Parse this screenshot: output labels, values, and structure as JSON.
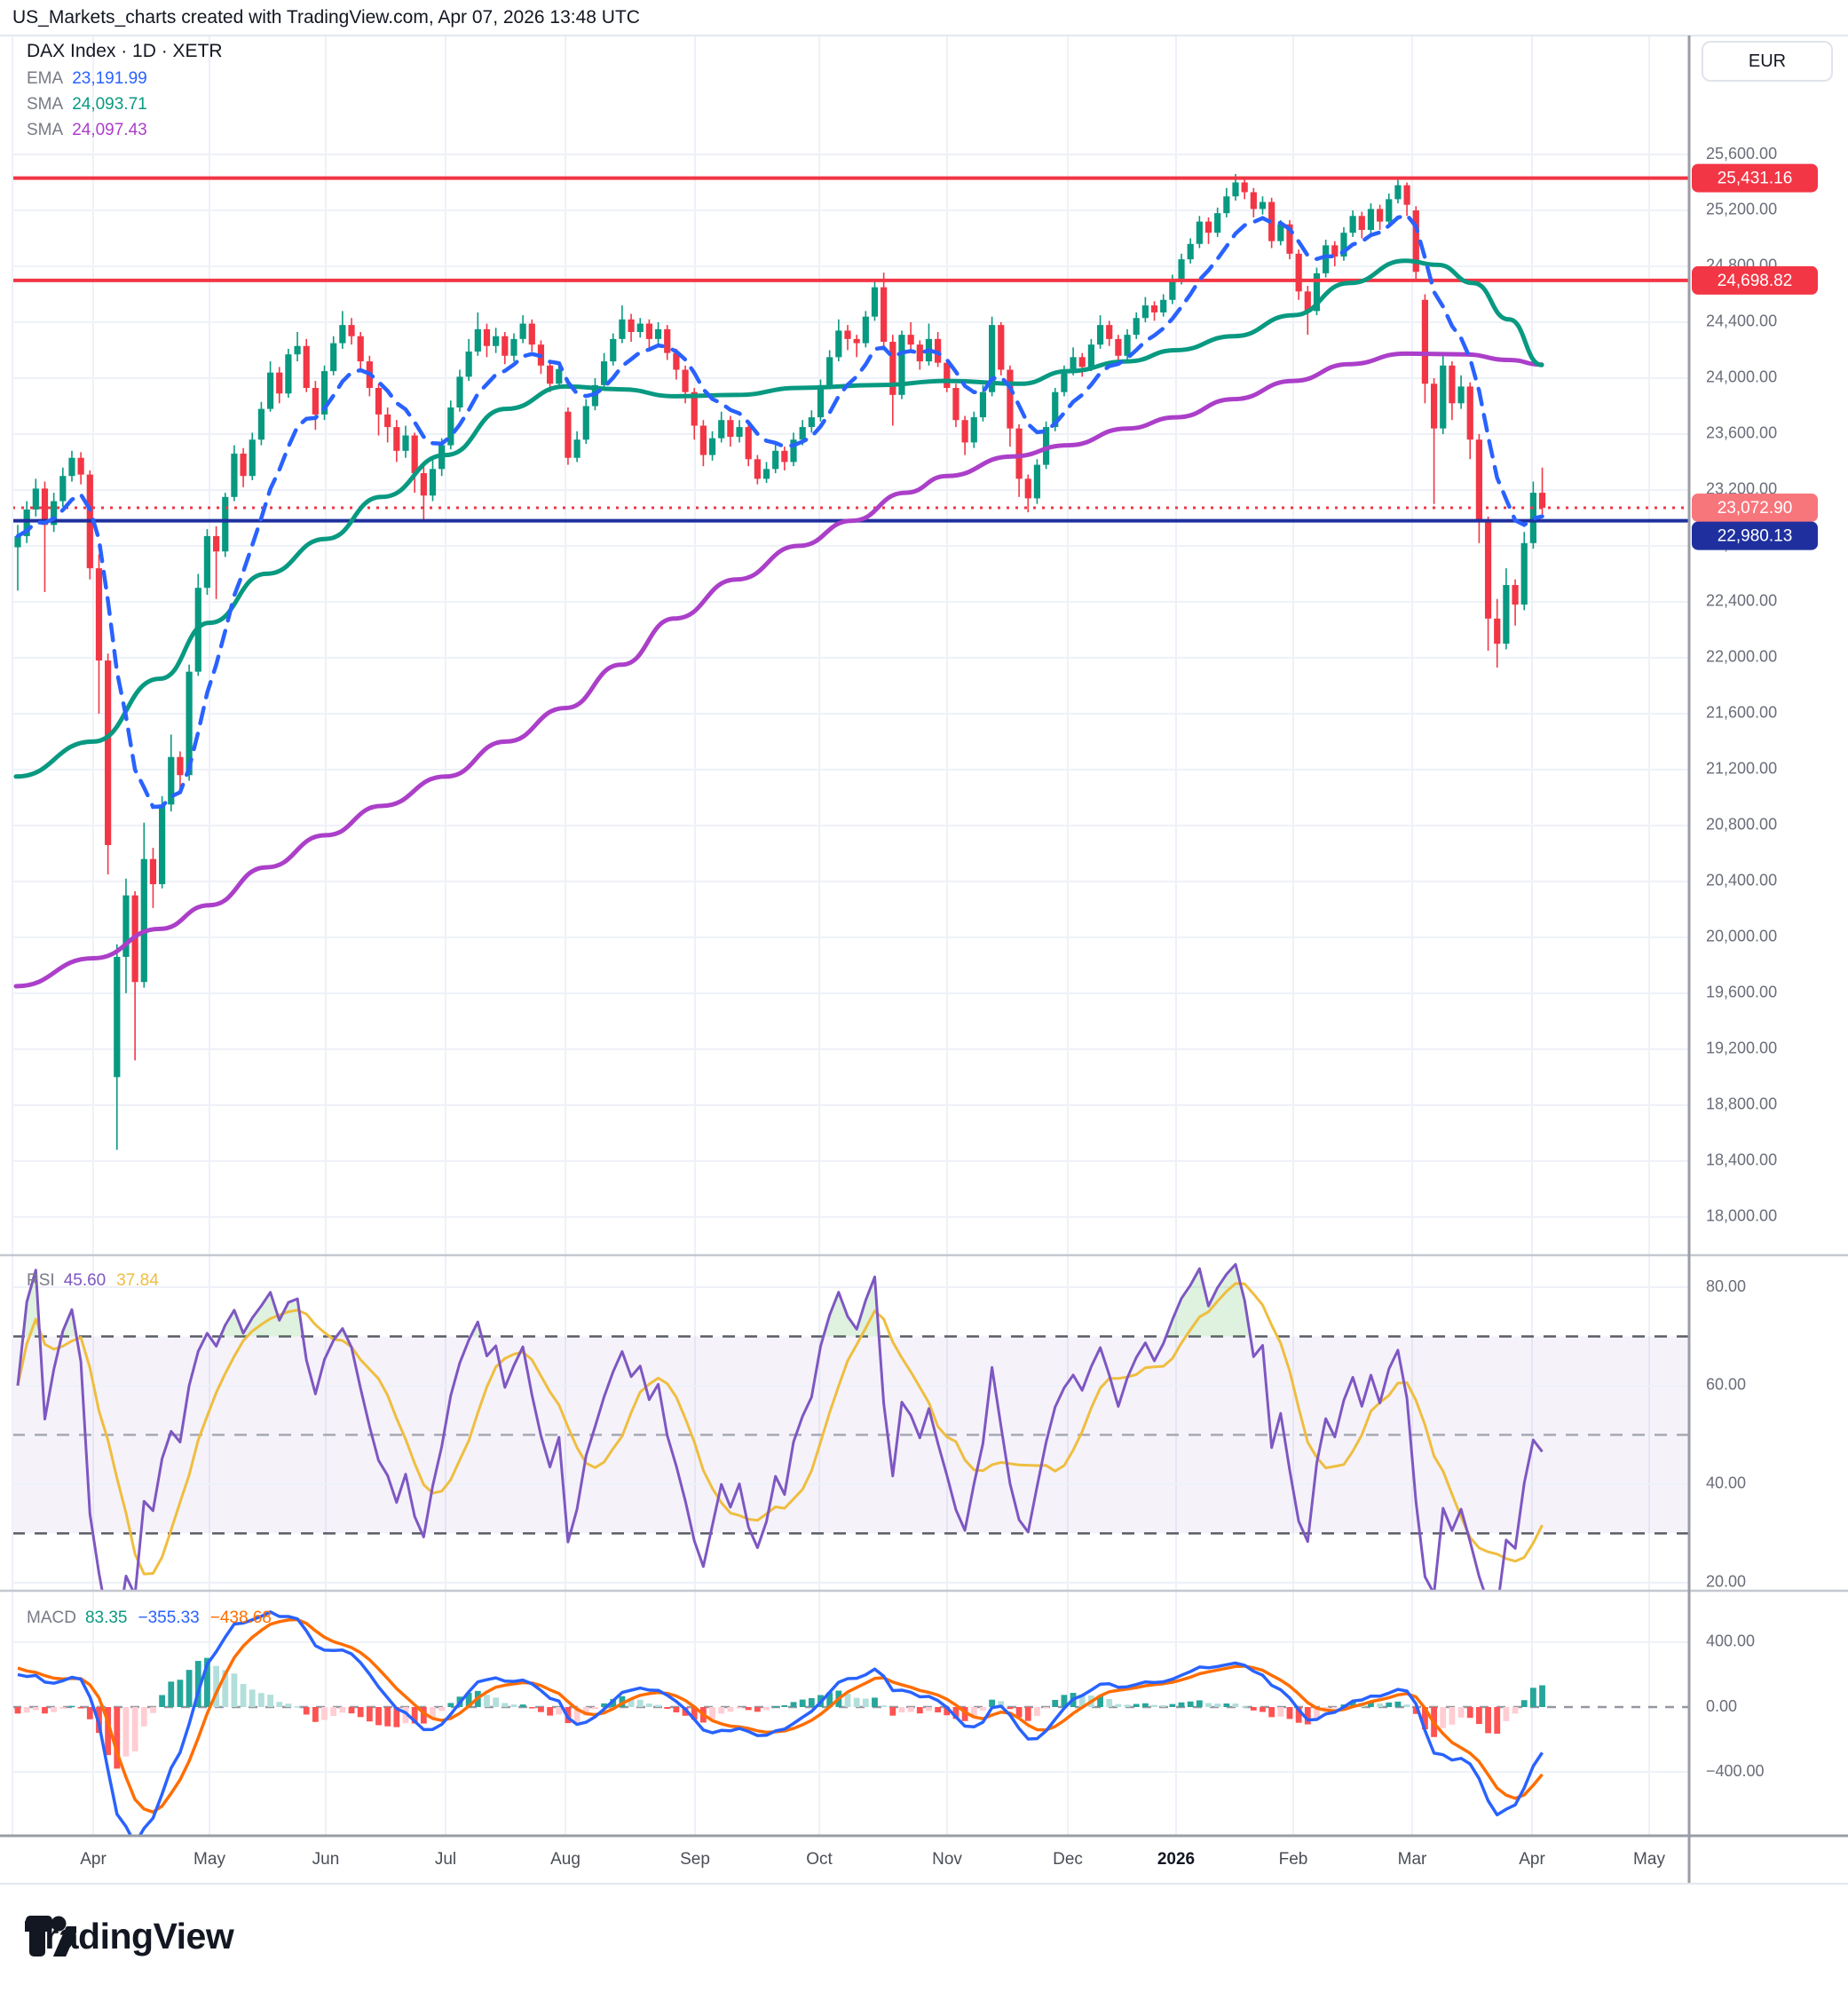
{
  "header": {
    "title": "US_Markets_charts created with TradingView.com, Apr 07, 2026 13:48 UTC"
  },
  "footer": {
    "brand": "TradingView"
  },
  "chart": {
    "symbol_title": "DAX Index · 1D · XETR",
    "currency_button": "EUR",
    "indicators": [
      {
        "label": "EMA",
        "value": "23,191.99",
        "color": "#2962FF"
      },
      {
        "label": "SMA",
        "value": "24,093.71",
        "color": "#089981"
      },
      {
        "label": "SMA",
        "value": "24,097.43",
        "color": "#AB3FC9"
      }
    ]
  },
  "chart_data": {
    "type": "candlestick",
    "title": "DAX Index daily with EMA/SMA overlays, RSI and MACD panels",
    "x_axis": {
      "labels": [
        "Apr",
        "May",
        "Jun",
        "Jul",
        "Aug",
        "Sep",
        "Oct",
        "Nov",
        "Dec",
        "2026",
        "Feb",
        "Mar",
        "Apr",
        "May"
      ],
      "positions": [
        105,
        236,
        367,
        502,
        637,
        783,
        923,
        1067,
        1203,
        1325,
        1457,
        1591,
        1726,
        1858
      ],
      "emphasis_index": 9
    },
    "price_axis": {
      "min": 18000,
      "max": 25600,
      "step": 400
    },
    "candle_colors": {
      "up": "#089981",
      "down": "#F23645"
    },
    "levels": [
      {
        "value": 25431.16,
        "label": "25,431.16",
        "color": "#F23645",
        "style": "solid",
        "badge": "#F23645"
      },
      {
        "value": 24698.82,
        "label": "24,698.82",
        "color": "#F23645",
        "style": "solid",
        "badge": "#F23645"
      },
      {
        "value": 23072.9,
        "label": "23,072.90",
        "color": "#F23645",
        "style": "dotted",
        "badge": "#F7767C"
      },
      {
        "value": 22980.13,
        "label": "22,980.13",
        "color": "#1F309E",
        "style": "solid",
        "badge": "#1F309E",
        "badge_dy": 17
      }
    ],
    "candles": [
      [
        22790,
        22950,
        22480,
        22870
      ],
      [
        22870,
        23120,
        22820,
        23060
      ],
      [
        23060,
        23280,
        23010,
        23210
      ],
      [
        23210,
        23260,
        22470,
        22950
      ],
      [
        22950,
        23180,
        22900,
        23120
      ],
      [
        23120,
        23360,
        23080,
        23300
      ],
      [
        23300,
        23480,
        23260,
        23430
      ],
      [
        23430,
        23470,
        23240,
        23310
      ],
      [
        23310,
        23340,
        22560,
        22640
      ],
      [
        22640,
        22740,
        21600,
        21980
      ],
      [
        21980,
        22030,
        20450,
        20660
      ],
      [
        19000,
        19950,
        18480,
        19860
      ],
      [
        19860,
        20420,
        19600,
        20300
      ],
      [
        20300,
        20330,
        19120,
        19680
      ],
      [
        19680,
        20820,
        19640,
        20560
      ],
      [
        20560,
        20640,
        20210,
        20380
      ],
      [
        20380,
        21010,
        20350,
        20950
      ],
      [
        20950,
        21450,
        20900,
        21290
      ],
      [
        21290,
        21330,
        21040,
        21160
      ],
      [
        21160,
        21950,
        21120,
        21900
      ],
      [
        21900,
        22600,
        21870,
        22500
      ],
      [
        22500,
        22920,
        22450,
        22870
      ],
      [
        22870,
        22940,
        22420,
        22760
      ],
      [
        22760,
        23180,
        22720,
        23150
      ],
      [
        23150,
        23520,
        23120,
        23460
      ],
      [
        23460,
        23500,
        23220,
        23300
      ],
      [
        23300,
        23610,
        23270,
        23560
      ],
      [
        23560,
        23830,
        23520,
        23780
      ],
      [
        23780,
        24120,
        23760,
        24040
      ],
      [
        24040,
        24080,
        23820,
        23890
      ],
      [
        23890,
        24210,
        23860,
        24170
      ],
      [
        24170,
        24330,
        24120,
        24230
      ],
      [
        24230,
        24280,
        23900,
        23930
      ],
      [
        23930,
        23980,
        23630,
        23740
      ],
      [
        23740,
        24090,
        23700,
        24050
      ],
      [
        24050,
        24300,
        24020,
        24250
      ],
      [
        24250,
        24480,
        24210,
        24380
      ],
      [
        24380,
        24430,
        24240,
        24300
      ],
      [
        24300,
        24330,
        24060,
        24120
      ],
      [
        24120,
        24160,
        23870,
        23930
      ],
      [
        23930,
        23960,
        23590,
        23740
      ],
      [
        23740,
        23790,
        23540,
        23650
      ],
      [
        23650,
        23700,
        23400,
        23480
      ],
      [
        23480,
        23660,
        23430,
        23590
      ],
      [
        23590,
        23610,
        23180,
        23320
      ],
      [
        23320,
        23370,
        22980,
        23160
      ],
      [
        23160,
        23420,
        23120,
        23350
      ],
      [
        23350,
        23570,
        23300,
        23520
      ],
      [
        23520,
        23840,
        23490,
        23790
      ],
      [
        23790,
        24060,
        23760,
        24010
      ],
      [
        24010,
        24280,
        23980,
        24190
      ],
      [
        24190,
        24470,
        24160,
        24350
      ],
      [
        24350,
        24390,
        24150,
        24230
      ],
      [
        24230,
        24360,
        24180,
        24300
      ],
      [
        24300,
        24330,
        24100,
        24160
      ],
      [
        24160,
        24320,
        24120,
        24280
      ],
      [
        24280,
        24450,
        24250,
        24390
      ],
      [
        24390,
        24420,
        24190,
        24240
      ],
      [
        24240,
        24270,
        24030,
        24090
      ],
      [
        24090,
        24120,
        23900,
        23960
      ],
      [
        23960,
        24110,
        23930,
        24065
      ],
      [
        23760,
        23790,
        23380,
        23430
      ],
      [
        23430,
        23620,
        23400,
        23560
      ],
      [
        23560,
        23850,
        23530,
        23800
      ],
      [
        23800,
        24000,
        23770,
        23950
      ],
      [
        23950,
        24180,
        23920,
        24120
      ],
      [
        24120,
        24320,
        24090,
        24280
      ],
      [
        24280,
        24520,
        24250,
        24420
      ],
      [
        24420,
        24460,
        24260,
        24330
      ],
      [
        24330,
        24430,
        24290,
        24390
      ],
      [
        24390,
        24420,
        24210,
        24280
      ],
      [
        24280,
        24400,
        24240,
        24350
      ],
      [
        24350,
        24380,
        24130,
        24180
      ],
      [
        24180,
        24210,
        23990,
        24060
      ],
      [
        24060,
        24090,
        23820,
        23900
      ],
      [
        23900,
        23930,
        23560,
        23660
      ],
      [
        23660,
        23700,
        23370,
        23450
      ],
      [
        23450,
        23620,
        23410,
        23570
      ],
      [
        23570,
        23760,
        23540,
        23700
      ],
      [
        23700,
        23730,
        23510,
        23580
      ],
      [
        23580,
        23700,
        23540,
        23650
      ],
      [
        23650,
        23680,
        23370,
        23420
      ],
      [
        23420,
        23450,
        23240,
        23280
      ],
      [
        23280,
        23400,
        23250,
        23350
      ],
      [
        23350,
        23530,
        23320,
        23480
      ],
      [
        23480,
        23510,
        23340,
        23400
      ],
      [
        23400,
        23610,
        23370,
        23560
      ],
      [
        23560,
        23700,
        23520,
        23650
      ],
      [
        23650,
        23770,
        23610,
        23720
      ],
      [
        23720,
        23990,
        23690,
        23950
      ],
      [
        23950,
        24200,
        23920,
        24150
      ],
      [
        24150,
        24420,
        24120,
        24340
      ],
      [
        24340,
        24380,
        24200,
        24280
      ],
      [
        24280,
        24310,
        24150,
        24250
      ],
      [
        24250,
        24480,
        24220,
        24440
      ],
      [
        24440,
        24700,
        24410,
        24650
      ],
      [
        24650,
        24755,
        24200,
        24260
      ],
      [
        24260,
        24310,
        23660,
        23880
      ],
      [
        23880,
        24340,
        23850,
        24310
      ],
      [
        24310,
        24400,
        24180,
        24240
      ],
      [
        24240,
        24270,
        24060,
        24120
      ],
      [
        24120,
        24390,
        24090,
        24280
      ],
      [
        24280,
        24330,
        24080,
        24110
      ],
      [
        24110,
        24130,
        23900,
        23930
      ],
      [
        23930,
        23960,
        23650,
        23700
      ],
      [
        23700,
        23730,
        23450,
        23540
      ],
      [
        23540,
        23760,
        23500,
        23720
      ],
      [
        23720,
        23950,
        23690,
        23900
      ],
      [
        23900,
        24440,
        23870,
        24380
      ],
      [
        24380,
        24400,
        24020,
        24060
      ],
      [
        24060,
        24090,
        23510,
        23640
      ],
      [
        23640,
        23670,
        23150,
        23280
      ],
      [
        23280,
        23310,
        23040,
        23140
      ],
      [
        23140,
        23420,
        23100,
        23380
      ],
      [
        23380,
        23690,
        23350,
        23650
      ],
      [
        23650,
        23930,
        23620,
        23900
      ],
      [
        23900,
        24090,
        23870,
        24050
      ],
      [
        24050,
        24220,
        24020,
        24150
      ],
      [
        24150,
        24180,
        24010,
        24080
      ],
      [
        24080,
        24280,
        24050,
        24240
      ],
      [
        24240,
        24450,
        24210,
        24380
      ],
      [
        24380,
        24410,
        24230,
        24280
      ],
      [
        24280,
        24310,
        24100,
        24160
      ],
      [
        24160,
        24350,
        24130,
        24310
      ],
      [
        24310,
        24470,
        24280,
        24430
      ],
      [
        24430,
        24580,
        24400,
        24520
      ],
      [
        24520,
        24550,
        24410,
        24470
      ],
      [
        24470,
        24600,
        24440,
        24560
      ],
      [
        24560,
        24740,
        24530,
        24700
      ],
      [
        24700,
        24890,
        24670,
        24850
      ],
      [
        24850,
        25000,
        24820,
        24960
      ],
      [
        24960,
        25160,
        24930,
        25120
      ],
      [
        25120,
        25150,
        24960,
        25040
      ],
      [
        25040,
        25220,
        25010,
        25180
      ],
      [
        25180,
        25360,
        25150,
        25300
      ],
      [
        25300,
        25460,
        25270,
        25400
      ],
      [
        25400,
        25440,
        25280,
        25330
      ],
      [
        25330,
        25360,
        25150,
        25210
      ],
      [
        25210,
        25300,
        25170,
        25260
      ],
      [
        25260,
        25290,
        24930,
        24980
      ],
      [
        24980,
        25130,
        24950,
        25100
      ],
      [
        25100,
        25130,
        24850,
        24890
      ],
      [
        24890,
        24920,
        24560,
        24620
      ],
      [
        24620,
        24660,
        24310,
        24480
      ],
      [
        24480,
        24790,
        24450,
        24750
      ],
      [
        24750,
        24990,
        24720,
        24950
      ],
      [
        24950,
        24980,
        24800,
        24870
      ],
      [
        24870,
        25080,
        24840,
        25040
      ],
      [
        25040,
        25200,
        25010,
        25160
      ],
      [
        25160,
        25190,
        25000,
        25060
      ],
      [
        25060,
        25250,
        25030,
        25210
      ],
      [
        25210,
        25240,
        25060,
        25120
      ],
      [
        25120,
        25320,
        25090,
        25280
      ],
      [
        25280,
        25420,
        25250,
        25380
      ],
      [
        25380,
        25400,
        25160,
        25240
      ],
      [
        25200,
        25230,
        24700,
        24760
      ],
      [
        24560,
        24600,
        23820,
        23960
      ],
      [
        23960,
        24000,
        23100,
        23640
      ],
      [
        23640,
        24180,
        23600,
        24090
      ],
      [
        24090,
        24120,
        23700,
        23820
      ],
      [
        23820,
        24020,
        23780,
        23940
      ],
      [
        23940,
        23970,
        23420,
        23560
      ],
      [
        23560,
        23600,
        22820,
        22980
      ],
      [
        22980,
        23010,
        22050,
        22280
      ],
      [
        22280,
        22420,
        21930,
        22100
      ],
      [
        22100,
        22640,
        22060,
        22520
      ],
      [
        22520,
        22560,
        22230,
        22380
      ],
      [
        22380,
        22900,
        22340,
        22820
      ],
      [
        22820,
        23260,
        22780,
        23180
      ],
      [
        23180,
        23360,
        23000,
        23073
      ]
    ],
    "overlays": {
      "ema": {
        "period": 9,
        "color": "#2962FF",
        "style": "dashed",
        "last_value": "23,191.99"
      },
      "sma_fast": {
        "color": "#089981",
        "last_value": "24,093.71",
        "anchors": [
          [
            18,
            21150
          ],
          [
            105,
            21400
          ],
          [
            180,
            21850
          ],
          [
            236,
            22250
          ],
          [
            300,
            22600
          ],
          [
            367,
            22850
          ],
          [
            430,
            23150
          ],
          [
            502,
            23450
          ],
          [
            570,
            23780
          ],
          [
            637,
            23940
          ],
          [
            700,
            23920
          ],
          [
            760,
            23870
          ],
          [
            830,
            23880
          ],
          [
            900,
            23930
          ],
          [
            990,
            23950
          ],
          [
            1067,
            23980
          ],
          [
            1150,
            23960
          ],
          [
            1203,
            24050
          ],
          [
            1270,
            24120
          ],
          [
            1325,
            24200
          ],
          [
            1390,
            24300
          ],
          [
            1457,
            24450
          ],
          [
            1520,
            24680
          ],
          [
            1583,
            24840
          ],
          [
            1620,
            24810
          ],
          [
            1660,
            24680
          ],
          [
            1700,
            24420
          ],
          [
            1737,
            24094
          ]
        ]
      },
      "sma_slow": {
        "color": "#AB3FC9",
        "last_value": "24,097.43",
        "anchors": [
          [
            18,
            19650
          ],
          [
            105,
            19850
          ],
          [
            180,
            20060
          ],
          [
            236,
            20230
          ],
          [
            300,
            20500
          ],
          [
            367,
            20730
          ],
          [
            430,
            20940
          ],
          [
            502,
            21150
          ],
          [
            570,
            21400
          ],
          [
            637,
            21640
          ],
          [
            700,
            21950
          ],
          [
            760,
            22280
          ],
          [
            830,
            22560
          ],
          [
            900,
            22800
          ],
          [
            960,
            22980
          ],
          [
            1020,
            23180
          ],
          [
            1067,
            23300
          ],
          [
            1140,
            23440
          ],
          [
            1203,
            23520
          ],
          [
            1270,
            23640
          ],
          [
            1325,
            23720
          ],
          [
            1390,
            23850
          ],
          [
            1457,
            23980
          ],
          [
            1520,
            24100
          ],
          [
            1583,
            24175
          ],
          [
            1650,
            24170
          ],
          [
            1700,
            24130
          ],
          [
            1737,
            24097
          ]
        ]
      }
    },
    "rsi": {
      "label": "RSI",
      "values": [
        "45.60",
        "37.84"
      ],
      "colors": [
        "#7E57C2",
        "#EFBE3F"
      ],
      "period": 7,
      "ma_period": 7,
      "ticks": [
        80,
        60,
        40,
        20
      ],
      "guides": [
        70,
        50,
        30
      ],
      "band_fill": "#7E57C2",
      "overbought_fill": "#4CAF50"
    },
    "macd": {
      "label": "MACD",
      "values": [
        "83.35",
        "−355.33",
        "−438.68"
      ],
      "colors": [
        "#089981",
        "#2962FF",
        "#FF6D00"
      ],
      "fast": 6,
      "slow": 13,
      "signal": 5,
      "ticks": [
        400,
        0,
        -400
      ],
      "hist_colors": {
        "up_rise": "#26A69A",
        "up_fall": "#B2DFDB",
        "down_fall": "#FF5252",
        "down_rise": "#FFCDD2"
      }
    }
  }
}
